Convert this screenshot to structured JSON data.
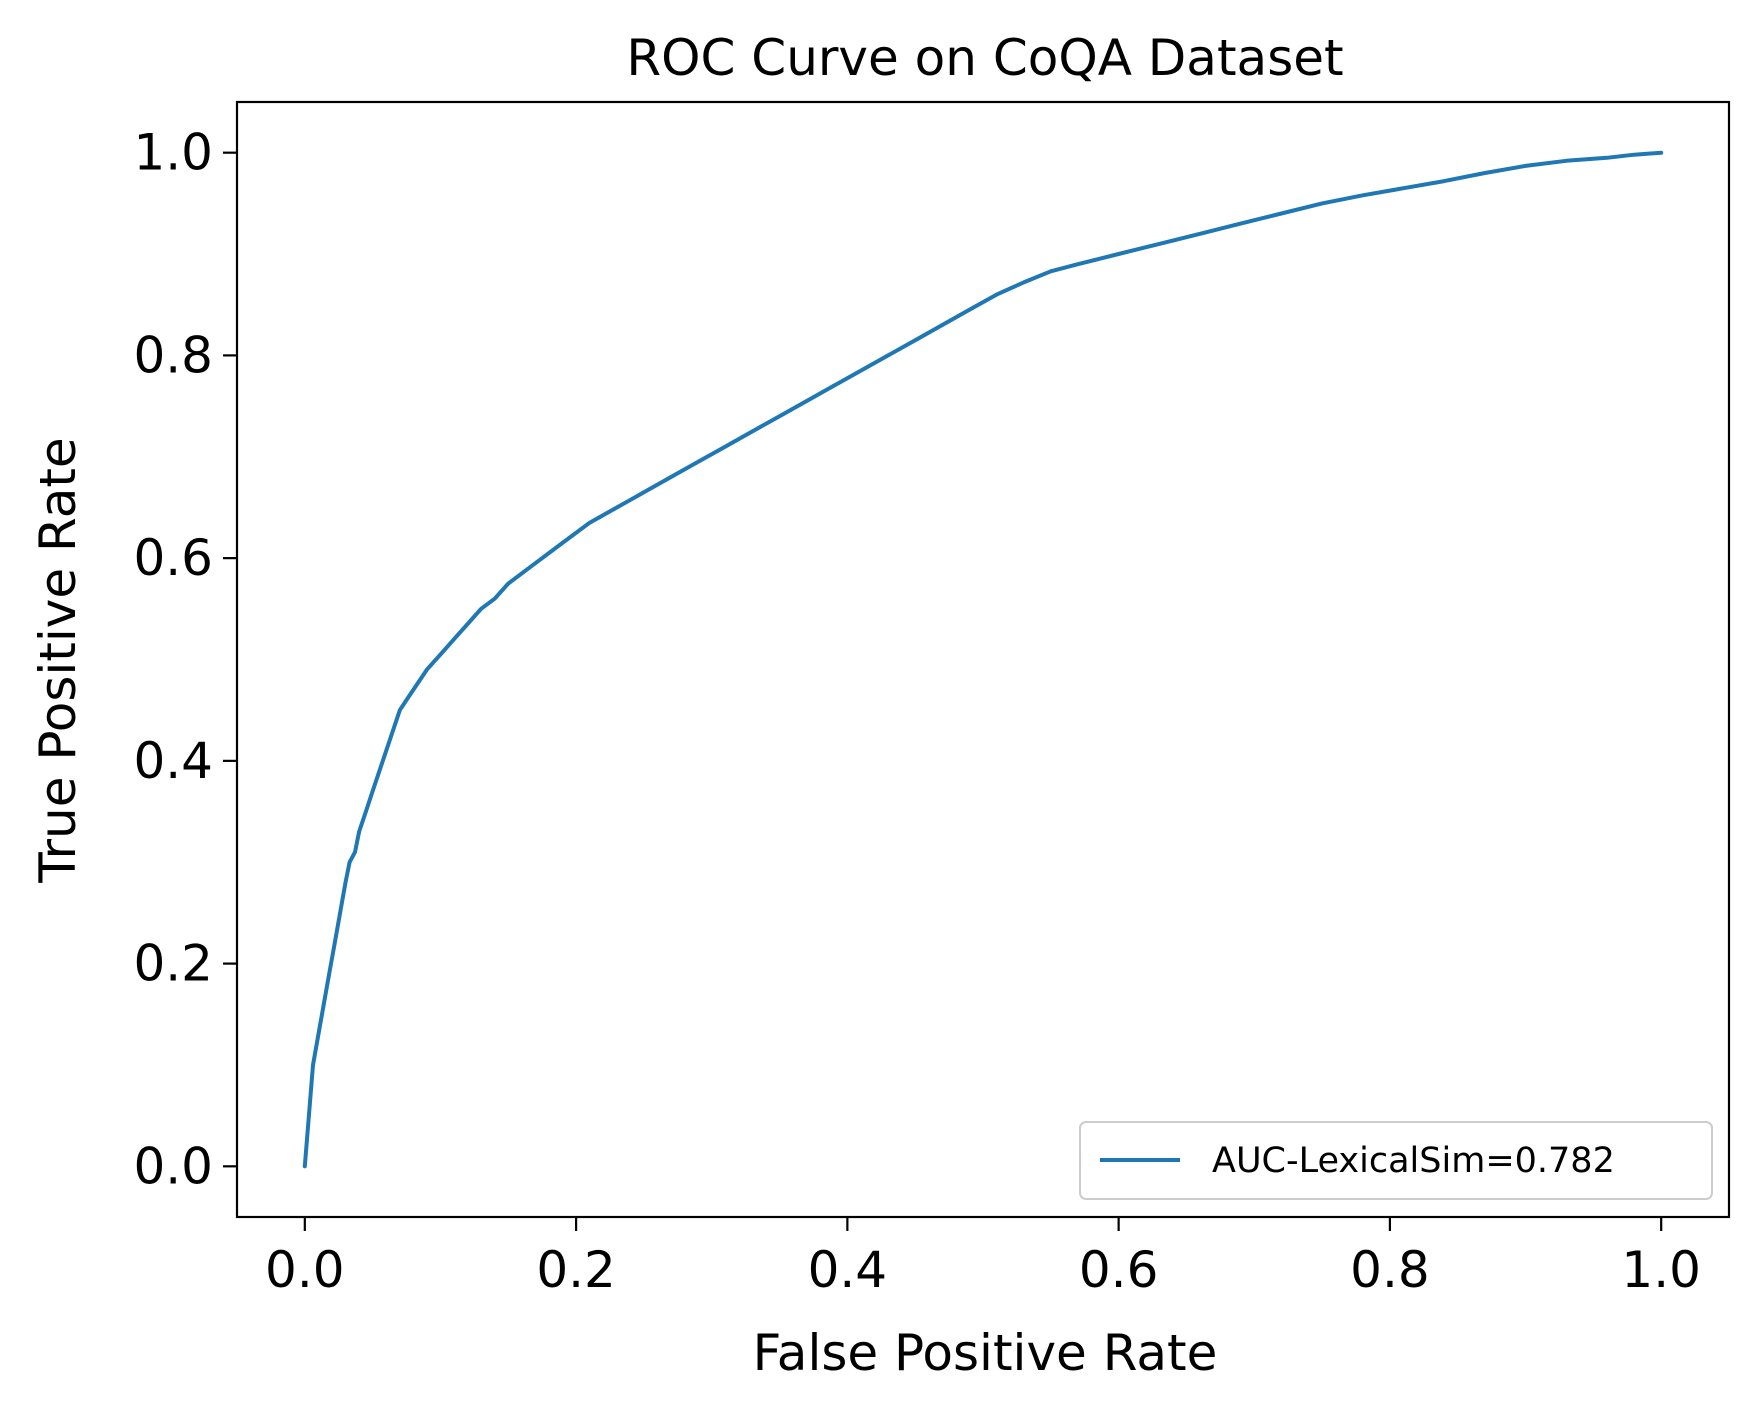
{
  "chart_data": {
    "type": "line",
    "title": "ROC Curve on CoQA Dataset",
    "xlabel": "False Positive Rate",
    "ylabel": "True Positive Rate",
    "xlim": [
      -0.05,
      1.05
    ],
    "ylim": [
      -0.05,
      1.05
    ],
    "xticks": [
      "0.0",
      "0.2",
      "0.4",
      "0.6",
      "0.8",
      "1.0"
    ],
    "yticks": [
      "0.0",
      "0.2",
      "0.4",
      "0.6",
      "0.8",
      "1.0"
    ],
    "grid": false,
    "legend_position": "lower-right",
    "series": [
      {
        "name": "AUC-LexicalSim=0.782",
        "color": "#1f77b4",
        "x": [
          0.0,
          0.003,
          0.006,
          0.01,
          0.014,
          0.018,
          0.022,
          0.026,
          0.03,
          0.033,
          0.037,
          0.04,
          0.045,
          0.05,
          0.055,
          0.06,
          0.065,
          0.07,
          0.075,
          0.08,
          0.085,
          0.09,
          0.1,
          0.11,
          0.12,
          0.13,
          0.14,
          0.15,
          0.17,
          0.19,
          0.21,
          0.23,
          0.25,
          0.27,
          0.29,
          0.31,
          0.33,
          0.35,
          0.37,
          0.39,
          0.41,
          0.43,
          0.45,
          0.47,
          0.49,
          0.51,
          0.53,
          0.55,
          0.57,
          0.6,
          0.63,
          0.66,
          0.69,
          0.72,
          0.75,
          0.78,
          0.81,
          0.84,
          0.87,
          0.9,
          0.93,
          0.96,
          0.98,
          1.0
        ],
        "y": [
          0.0,
          0.05,
          0.1,
          0.13,
          0.16,
          0.19,
          0.22,
          0.25,
          0.28,
          0.3,
          0.31,
          0.33,
          0.35,
          0.37,
          0.39,
          0.41,
          0.43,
          0.45,
          0.46,
          0.47,
          0.48,
          0.49,
          0.505,
          0.52,
          0.535,
          0.55,
          0.56,
          0.575,
          0.595,
          0.615,
          0.635,
          0.65,
          0.665,
          0.68,
          0.695,
          0.71,
          0.725,
          0.74,
          0.755,
          0.77,
          0.785,
          0.8,
          0.815,
          0.83,
          0.845,
          0.86,
          0.872,
          0.883,
          0.89,
          0.9,
          0.91,
          0.92,
          0.93,
          0.94,
          0.95,
          0.958,
          0.965,
          0.972,
          0.98,
          0.987,
          0.992,
          0.995,
          0.998,
          1.0
        ]
      }
    ]
  }
}
